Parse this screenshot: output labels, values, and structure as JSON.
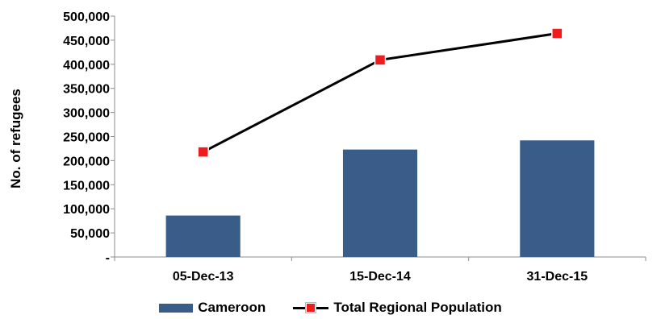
{
  "chart_data": {
    "type": "bar",
    "categories": [
      "05-Dec-13",
      "15-Dec-14",
      "31-Dec-15"
    ],
    "series": [
      {
        "name": "Cameroon",
        "kind": "bar",
        "values": [
          86000,
          223000,
          242000
        ],
        "color": "#3a5c89"
      },
      {
        "name": "Total Regional Population",
        "kind": "line",
        "values": [
          218000,
          409000,
          464000
        ],
        "color": "#000000",
        "marker_color": "#ee1c1c"
      }
    ],
    "title": "",
    "xlabel": "",
    "ylabel": "No. of refugees",
    "ylim": [
      0,
      500000
    ],
    "yticks": [
      0,
      50000,
      100000,
      150000,
      200000,
      250000,
      300000,
      350000,
      400000,
      450000,
      500000
    ],
    "ytick_labels": [
      "-",
      "50,000",
      "100,000",
      "150,000",
      "200,000",
      "250,000",
      "300,000",
      "350,000",
      "400,000",
      "450,000",
      "500,000"
    ],
    "grid": false,
    "legend_position": "bottom"
  }
}
